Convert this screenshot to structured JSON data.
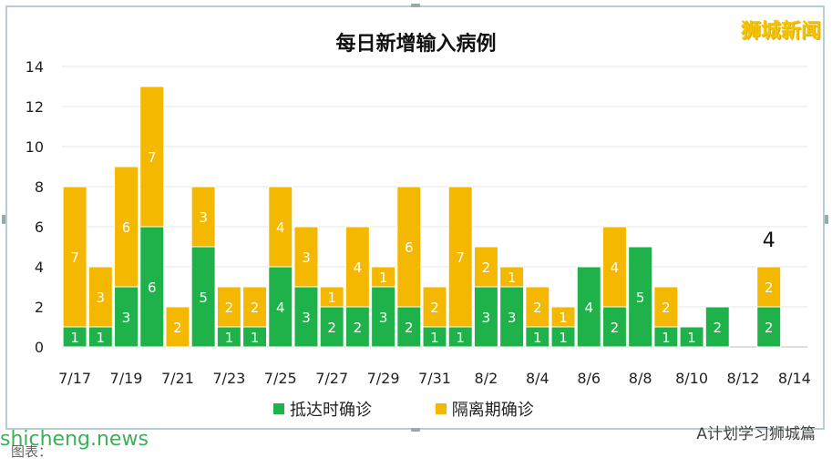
{
  "brand": "狮城新闻",
  "caption": "图表：",
  "watermark_left": "shicheng.news",
  "watermark_right": "A计划学习狮城篇",
  "chart_data": {
    "type": "bar",
    "stacked": true,
    "title": "每日新增输入病例",
    "xlabel": "",
    "ylabel": "",
    "ylim": [
      0,
      14
    ],
    "yticks": [
      0,
      2,
      4,
      6,
      8,
      10,
      12,
      14
    ],
    "grid": true,
    "legend_position": "bottom",
    "categories": [
      "7/17",
      "7/18",
      "7/19",
      "7/20",
      "7/21",
      "7/22",
      "7/23",
      "7/24",
      "7/25",
      "7/26",
      "7/27",
      "7/28",
      "7/29",
      "7/30",
      "7/31",
      "8/1",
      "8/2",
      "8/3",
      "8/4",
      "8/5",
      "8/6",
      "8/7",
      "8/8",
      "8/9",
      "8/10",
      "8/11",
      "8/12",
      "8/13",
      "8/14"
    ],
    "xtick_labels": [
      "7/17",
      "7/19",
      "7/21",
      "7/23",
      "7/25",
      "7/27",
      "7/29",
      "7/31",
      "8/2",
      "8/4",
      "8/6",
      "8/8",
      "8/10",
      "8/12",
      "8/14"
    ],
    "series": [
      {
        "name": "抵达时确诊",
        "color": "#1fb24a",
        "values": [
          1,
          1,
          3,
          6,
          0,
          5,
          1,
          1,
          4,
          3,
          2,
          2,
          3,
          2,
          1,
          1,
          3,
          3,
          1,
          1,
          4,
          2,
          5,
          1,
          1,
          2,
          0,
          2,
          0
        ]
      },
      {
        "name": "隔离期确诊",
        "color": "#f5b800",
        "values": [
          7,
          3,
          6,
          7,
          2,
          3,
          2,
          2,
          4,
          3,
          1,
          4,
          1,
          6,
          2,
          7,
          2,
          1,
          2,
          1,
          0,
          4,
          0,
          2,
          0,
          0,
          0,
          2,
          0
        ]
      }
    ],
    "annotation": {
      "category": "8/13",
      "text": "4"
    }
  }
}
